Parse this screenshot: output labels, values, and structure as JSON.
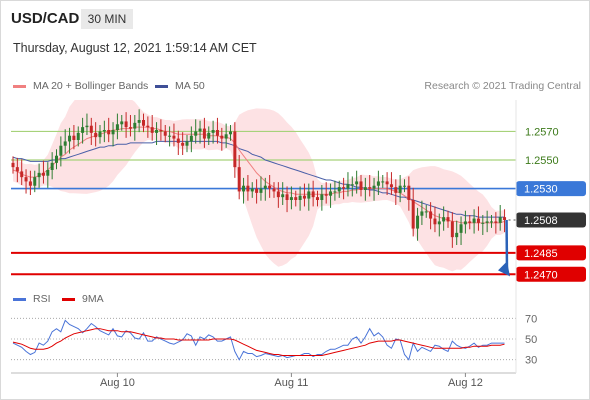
{
  "header": {
    "symbol": "USD/CAD",
    "timeframe": "30 MIN",
    "timestamp": "Thursday, August 12, 2021 1:59:14 AM CET"
  },
  "legend": {
    "ma20": "MA 20 + Bollinger Bands",
    "ma50": "MA 50",
    "credit": "Research © 2021 Trading Central",
    "rsi": "RSI",
    "rsi_ma": "9MA"
  },
  "colors": {
    "up": "#2e7d32",
    "down": "#c62828",
    "ma20": "#f08080",
    "ma50": "#4a5fa8",
    "band": "#fde2e4",
    "resistance": "#a7d27a",
    "pivot": "#3a78d8",
    "support": "#e00000",
    "current": "#333333",
    "rsi": "#4a74d8",
    "rsi_ma": "#e00000",
    "arrow": "#2a62b8"
  },
  "chart_data": {
    "type": "candlestick",
    "x_labels": [
      "Aug 10",
      "Aug 11",
      "Aug 12"
    ],
    "levels": [
      {
        "value": "1.2570",
        "kind": "resistance"
      },
      {
        "value": "1.2550",
        "kind": "resistance"
      },
      {
        "value": "1.2530",
        "kind": "pivot"
      },
      {
        "value": "1.2508",
        "kind": "current"
      },
      {
        "value": "1.2485",
        "kind": "support"
      },
      {
        "value": "1.2470",
        "kind": "support"
      }
    ],
    "ylim": [
      1.2466,
      1.2592
    ],
    "close": [
      1.2545,
      1.2542,
      1.2538,
      1.2535,
      1.2532,
      1.2538,
      1.2541,
      1.2539,
      1.2543,
      1.2548,
      1.2553,
      1.256,
      1.2563,
      1.2567,
      1.2564,
      1.2569,
      1.2573,
      1.2574,
      1.2569,
      1.2566,
      1.257,
      1.2571,
      1.2568,
      1.2571,
      1.2575,
      1.2577,
      1.2573,
      1.2572,
      1.2576,
      1.2578,
      1.2574,
      1.2573,
      1.2569,
      1.2571,
      1.257,
      1.2567,
      1.2567,
      1.2565,
      1.2562,
      1.256,
      1.2563,
      1.2567,
      1.257,
      1.2572,
      1.2565,
      1.2569,
      1.2571,
      1.2567,
      1.2565,
      1.2568,
      1.257,
      1.2545,
      1.2528,
      1.2532,
      1.2528,
      1.253,
      1.2527,
      1.253,
      1.2532,
      1.253,
      1.2528,
      1.2524,
      1.2526,
      1.2522,
      1.2524,
      1.2522,
      1.2525,
      1.2523,
      1.2528,
      1.2524,
      1.2522,
      1.2526,
      1.2525,
      1.2528,
      1.2528,
      1.2531,
      1.253,
      1.2533,
      1.2533,
      1.2535,
      1.2529,
      1.2531,
      1.253,
      1.2532,
      1.2535,
      1.2535,
      1.2533,
      1.2531,
      1.2527,
      1.2532,
      1.2532,
      1.2522,
      1.2502,
      1.2511,
      1.2514,
      1.2514,
      1.2509,
      1.2505,
      1.2507,
      1.251,
      1.2507,
      1.2496,
      1.2499,
      1.2505,
      1.2507,
      1.2506,
      1.2509,
      1.2506,
      1.2506,
      1.2507,
      1.2507,
      1.2506,
      1.251,
      1.2508
    ],
    "ma20": [
      1.2543,
      1.2542,
      1.254,
      1.2539,
      1.2538,
      1.2538,
      1.2539,
      1.2541,
      1.2543,
      1.2546,
      1.2549,
      1.2552,
      1.2554,
      1.2557,
      1.2559,
      1.2561,
      1.2563,
      1.2565,
      1.2566,
      1.2567,
      1.2568,
      1.2569,
      1.257,
      1.2571,
      1.2571,
      1.2572,
      1.2572,
      1.2572,
      1.2573,
      1.2573,
      1.2573,
      1.2573,
      1.2572,
      1.2572,
      1.2571,
      1.257,
      1.257,
      1.2569,
      1.2568,
      1.2568,
      1.2568,
      1.2568,
      1.2568,
      1.2568,
      1.2568,
      1.2567,
      1.2567,
      1.2567,
      1.2566,
      1.2566,
      1.2565,
      1.2562,
      1.2557,
      1.2553,
      1.2549,
      1.2545,
      1.2541,
      1.2538,
      1.2535,
      1.2533,
      1.2531,
      1.2529,
      1.2528,
      1.2527,
      1.2527,
      1.2526,
      1.2526,
      1.2526,
      1.2526,
      1.2526,
      1.2526,
      1.2526,
      1.2526,
      1.2526,
      1.2527,
      1.2527,
      1.2528,
      1.2528,
      1.2529,
      1.2529,
      1.253,
      1.253,
      1.253,
      1.253,
      1.253,
      1.253,
      1.253,
      1.2529,
      1.2528,
      1.2527,
      1.2525,
      1.2523,
      1.2521,
      1.2519,
      1.2517,
      1.2515,
      1.2513,
      1.2511,
      1.251,
      1.2509,
      1.2508,
      1.2507,
      1.2507,
      1.2506,
      1.2506,
      1.2506,
      1.2506,
      1.2506,
      1.2506,
      1.2506,
      1.2506,
      1.2506,
      1.2506,
      1.2507
    ],
    "ma50": [
      1.2552,
      1.2551,
      1.2551,
      1.255,
      1.2549,
      1.2549,
      1.2549,
      1.2549,
      1.2549,
      1.255,
      1.255,
      1.2551,
      1.2551,
      1.2552,
      1.2553,
      1.2554,
      1.2555,
      1.2556,
      1.2557,
      1.2558,
      1.2559,
      1.2559,
      1.256,
      1.256,
      1.2561,
      1.2561,
      1.2561,
      1.2562,
      1.2562,
      1.2562,
      1.2562,
      1.2562,
      1.2562,
      1.2563,
      1.2563,
      1.2563,
      1.2563,
      1.2563,
      1.2563,
      1.2563,
      1.2563,
      1.2563,
      1.2563,
      1.2563,
      1.2563,
      1.2563,
      1.2563,
      1.2563,
      1.2562,
      1.2562,
      1.2561,
      1.256,
      1.2558,
      1.2557,
      1.2556,
      1.2554,
      1.2553,
      1.2552,
      1.255,
      1.2549,
      1.2548,
      1.2547,
      1.2546,
      1.2545,
      1.2544,
      1.2543,
      1.2542,
      1.2541,
      1.254,
      1.2539,
      1.2538,
      1.2537,
      1.2536,
      1.2536,
      1.2535,
      1.2534,
      1.2533,
      1.2533,
      1.2532,
      1.2531,
      1.2531,
      1.253,
      1.2529,
      1.2529,
      1.2528,
      1.2527,
      1.2527,
      1.2526,
      1.2525,
      1.2524,
      1.2524,
      1.2523,
      1.2522,
      1.2521,
      1.252,
      1.2519,
      1.2518,
      1.2517,
      1.2516,
      1.2515,
      1.2514,
      1.2513,
      1.2512,
      1.2512,
      1.2511,
      1.2511,
      1.2511,
      1.251,
      1.251,
      1.251,
      1.251,
      1.251,
      1.251,
      1.251
    ],
    "rsi": {
      "levels": [
        "70",
        "50",
        "30"
      ],
      "ylim": [
        20,
        80
      ],
      "rsi": [
        46,
        44,
        42,
        38,
        35,
        37,
        46,
        44,
        48,
        57,
        60,
        57,
        68,
        64,
        62,
        60,
        56,
        60,
        65,
        62,
        58,
        56,
        54,
        60,
        53,
        52,
        58,
        56,
        51,
        50,
        56,
        48,
        48,
        52,
        50,
        48,
        46,
        45,
        47,
        49,
        55,
        53,
        44,
        52,
        50,
        54,
        52,
        48,
        48,
        50,
        52,
        38,
        30,
        38,
        36,
        36,
        33,
        34,
        36,
        35,
        34,
        33,
        34,
        32,
        33,
        34,
        34,
        36,
        36,
        33,
        35,
        35,
        38,
        40,
        40,
        42,
        44,
        44,
        50,
        52,
        46,
        52,
        60,
        53,
        56,
        52,
        44,
        41,
        50,
        49,
        35,
        30,
        46,
        38,
        42,
        40,
        38,
        44,
        43,
        40,
        38,
        48,
        44,
        42,
        41,
        43,
        46,
        42,
        44,
        44,
        46,
        46,
        46,
        46
      ],
      "ma9": [
        47,
        46,
        45,
        43,
        41,
        40,
        40,
        40,
        41,
        43,
        46,
        48,
        51,
        53,
        55,
        56,
        57,
        58,
        59,
        60,
        60,
        59,
        58,
        58,
        58,
        57,
        57,
        57,
        56,
        55,
        54,
        53,
        52,
        51,
        51,
        50,
        50,
        50,
        49,
        49,
        49,
        49,
        49,
        49,
        49,
        49,
        50,
        50,
        50,
        50,
        50,
        49,
        47,
        45,
        43,
        41,
        39,
        38,
        37,
        36,
        35,
        35,
        34,
        34,
        34,
        34,
        34,
        34,
        34,
        34,
        34,
        34,
        35,
        36,
        37,
        38,
        39,
        40,
        41,
        42,
        43,
        44,
        46,
        47,
        48,
        48,
        48,
        48,
        49,
        49,
        48,
        47,
        46,
        45,
        44,
        43,
        42,
        41,
        41,
        41,
        41,
        41,
        41,
        41,
        42,
        42,
        43,
        43,
        43,
        43,
        44,
        44,
        44,
        45
      ]
    }
  }
}
